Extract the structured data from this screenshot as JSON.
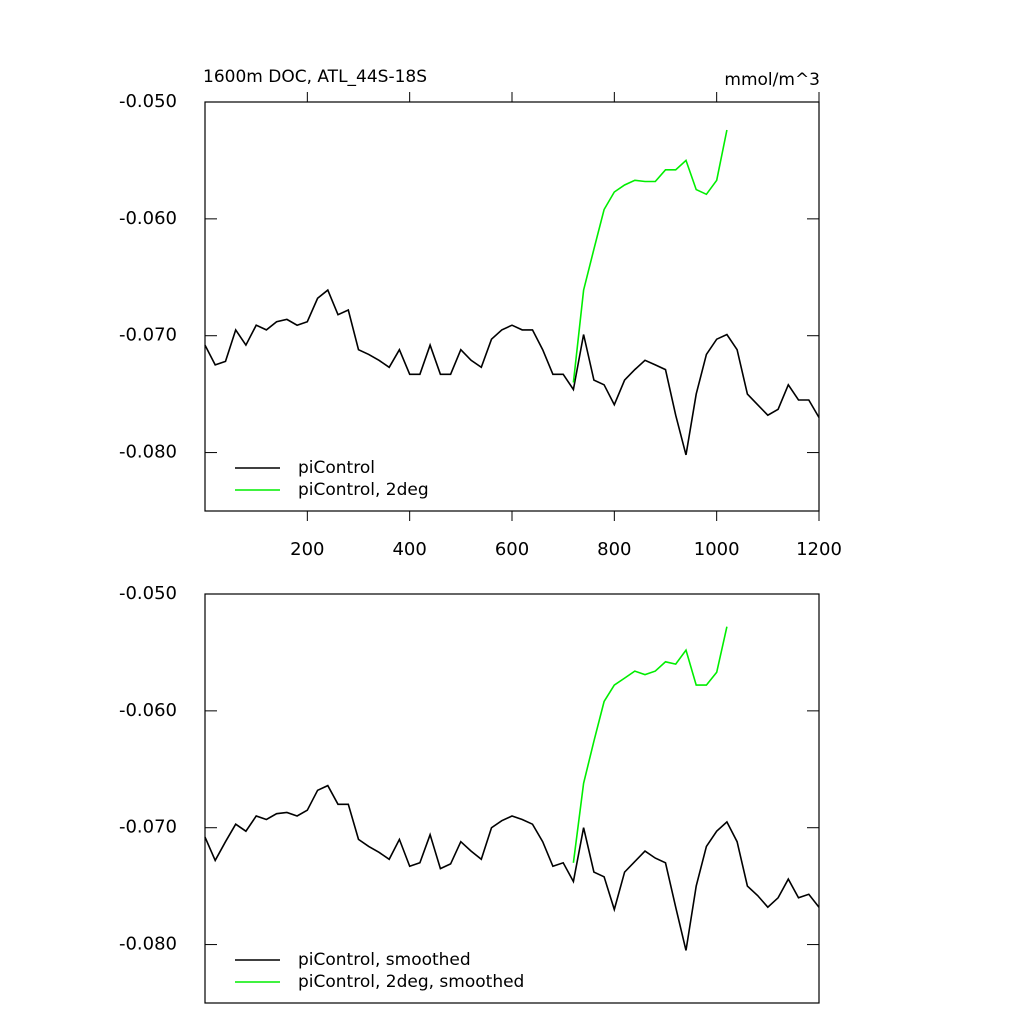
{
  "chart_data": [
    {
      "type": "line",
      "title": "1600m DOC, ATL_44S-18S",
      "units": "mmol/m^3",
      "x": [
        0,
        20,
        40,
        60,
        80,
        100,
        120,
        140,
        160,
        180,
        200,
        220,
        240,
        260,
        280,
        300,
        320,
        340,
        360,
        380,
        400,
        420,
        440,
        460,
        480,
        500,
        520,
        540,
        560,
        580,
        600,
        620,
        640,
        660,
        680,
        700,
        720,
        740,
        760,
        780,
        800,
        820,
        840,
        860,
        880,
        900,
        920,
        940,
        960,
        980,
        1000,
        1020,
        1040,
        1060,
        1080,
        1100,
        1120,
        1140,
        1160,
        1180,
        1200
      ],
      "series": [
        {
          "name": "piControl",
          "color": "#000000",
          "values": [
            -0.0708,
            -0.0725,
            -0.0722,
            -0.0695,
            -0.0708,
            -0.0691,
            -0.0695,
            -0.0688,
            -0.0686,
            -0.0691,
            -0.0688,
            -0.0668,
            -0.0661,
            -0.0682,
            -0.0678,
            -0.0712,
            -0.0716,
            -0.0721,
            -0.0727,
            -0.0712,
            -0.0733,
            -0.0733,
            -0.0708,
            -0.0733,
            -0.0733,
            -0.0712,
            -0.0721,
            -0.0727,
            -0.0703,
            -0.0695,
            -0.0691,
            -0.0695,
            -0.0695,
            -0.0712,
            -0.0733,
            -0.0733,
            -0.0746,
            -0.0699,
            -0.0738,
            -0.0742,
            -0.0759,
            -0.0738,
            -0.0729,
            -0.0721,
            -0.0725,
            -0.0729,
            -0.0768,
            -0.0802,
            -0.075,
            -0.0716,
            -0.0703,
            -0.0699,
            -0.0712,
            -0.075,
            -0.0759,
            -0.0768,
            -0.0763,
            -0.0742,
            -0.0755,
            -0.0755,
            -0.077
          ]
        },
        {
          "name": "piControl, 2deg",
          "color": "#00ee00",
          "values": [
            null,
            null,
            null,
            null,
            null,
            null,
            null,
            null,
            null,
            null,
            null,
            null,
            null,
            null,
            null,
            null,
            null,
            null,
            null,
            null,
            null,
            null,
            null,
            null,
            null,
            null,
            null,
            null,
            null,
            null,
            null,
            null,
            null,
            null,
            null,
            null,
            -0.074,
            -0.0661,
            -0.0626,
            -0.0592,
            -0.0577,
            -0.0571,
            -0.0567,
            -0.0568,
            -0.0568,
            -0.0558,
            -0.0558,
            -0.055,
            -0.0575,
            -0.0579,
            -0.0567,
            -0.0524,
            null,
            null,
            null,
            null,
            null,
            null,
            null,
            null,
            null
          ]
        }
      ],
      "xlim": [
        0,
        1200
      ],
      "xticks": [
        200,
        400,
        600,
        800,
        1000,
        1200
      ],
      "ylim": [
        -0.085,
        -0.05
      ],
      "yticks": [
        {
          "value": -0.05,
          "label": "-0.050"
        },
        {
          "value": -0.06,
          "label": "-0.060"
        },
        {
          "value": -0.07,
          "label": "-0.070"
        },
        {
          "value": -0.08,
          "label": "-0.080"
        }
      ]
    },
    {
      "type": "line",
      "x": [
        0,
        20,
        40,
        60,
        80,
        100,
        120,
        140,
        160,
        180,
        200,
        220,
        240,
        260,
        280,
        300,
        320,
        340,
        360,
        380,
        400,
        420,
        440,
        460,
        480,
        500,
        520,
        540,
        560,
        580,
        600,
        620,
        640,
        660,
        680,
        700,
        720,
        740,
        760,
        780,
        800,
        820,
        840,
        860,
        880,
        900,
        920,
        940,
        960,
        980,
        1000,
        1020,
        1040,
        1060,
        1080,
        1100,
        1120,
        1140,
        1160,
        1180,
        1200
      ],
      "series": [
        {
          "name": "piControl, smoothed",
          "color": "#000000",
          "values": [
            -0.0708,
            -0.0728,
            -0.0712,
            -0.0697,
            -0.0703,
            -0.069,
            -0.0693,
            -0.0688,
            -0.0687,
            -0.069,
            -0.0685,
            -0.0668,
            -0.0664,
            -0.068,
            -0.068,
            -0.071,
            -0.0716,
            -0.0721,
            -0.0727,
            -0.071,
            -0.0733,
            -0.073,
            -0.0706,
            -0.0735,
            -0.0731,
            -0.0712,
            -0.072,
            -0.0727,
            -0.07,
            -0.0694,
            -0.069,
            -0.0693,
            -0.0697,
            -0.0712,
            -0.0733,
            -0.073,
            -0.0746,
            -0.07,
            -0.0738,
            -0.0742,
            -0.077,
            -0.0738,
            -0.0729,
            -0.072,
            -0.0726,
            -0.073,
            -0.0768,
            -0.0805,
            -0.075,
            -0.0716,
            -0.0703,
            -0.0695,
            -0.0712,
            -0.075,
            -0.0758,
            -0.0768,
            -0.076,
            -0.0744,
            -0.076,
            -0.0757,
            -0.0768
          ]
        },
        {
          "name": "piControl, 2deg, smoothed",
          "color": "#00ee00",
          "values": [
            null,
            null,
            null,
            null,
            null,
            null,
            null,
            null,
            null,
            null,
            null,
            null,
            null,
            null,
            null,
            null,
            null,
            null,
            null,
            null,
            null,
            null,
            null,
            null,
            null,
            null,
            null,
            null,
            null,
            null,
            null,
            null,
            null,
            null,
            null,
            null,
            -0.073,
            -0.0662,
            -0.0626,
            -0.0592,
            -0.0578,
            -0.0572,
            -0.0566,
            -0.0569,
            -0.0566,
            -0.0558,
            -0.056,
            -0.0548,
            -0.0578,
            -0.0578,
            -0.0567,
            -0.0528,
            null,
            null,
            null,
            null,
            null,
            null,
            null,
            null,
            null
          ]
        }
      ],
      "xlim": [
        0,
        1200
      ],
      "ylim": [
        -0.085,
        -0.05
      ],
      "yticks": [
        {
          "value": -0.05,
          "label": "-0.050"
        },
        {
          "value": -0.06,
          "label": "-0.060"
        },
        {
          "value": -0.07,
          "label": "-0.070"
        },
        {
          "value": -0.08,
          "label": "-0.080"
        }
      ]
    }
  ]
}
